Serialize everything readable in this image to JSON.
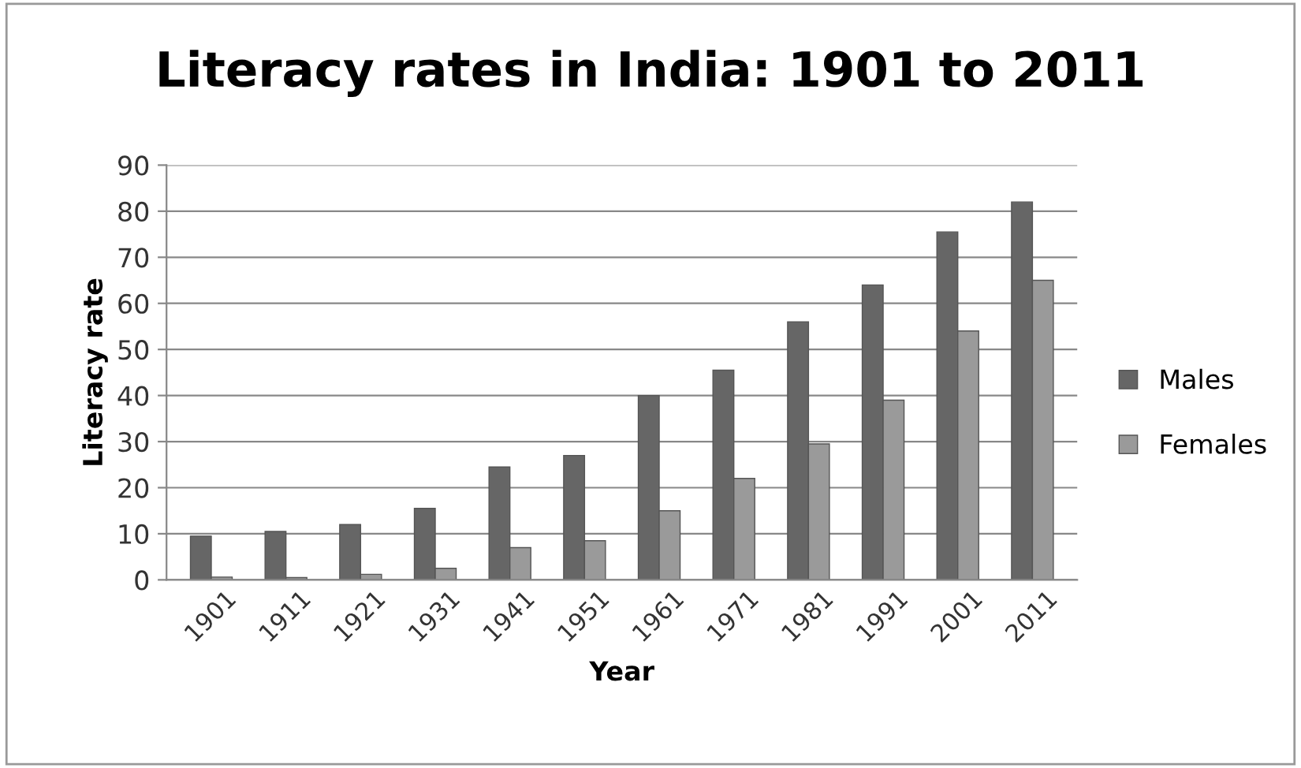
{
  "chart_data": {
    "type": "bar",
    "title": "Literacy rates in India: 1901 to 2011",
    "xlabel": "Year",
    "ylabel": "Literacy rate",
    "categories": [
      "1901",
      "1911",
      "1921",
      "1931",
      "1941",
      "1951",
      "1961",
      "1971",
      "1981",
      "1991",
      "2001",
      "2011"
    ],
    "series": [
      {
        "name": "Males",
        "color": "#666666",
        "values": [
          9.5,
          10.5,
          12,
          15.5,
          24.5,
          27,
          40,
          45.5,
          56,
          64,
          75.5,
          82
        ]
      },
      {
        "name": "Females",
        "color": "#9a9a9a",
        "values": [
          0.6,
          0.5,
          1.2,
          2.5,
          7,
          8.5,
          15,
          22,
          29.5,
          39,
          54,
          65
        ]
      }
    ],
    "ylim": [
      0,
      90
    ],
    "yticks": [
      0,
      10,
      20,
      30,
      40,
      50,
      60,
      70,
      80,
      90
    ],
    "grid": "y",
    "legend": "right"
  }
}
